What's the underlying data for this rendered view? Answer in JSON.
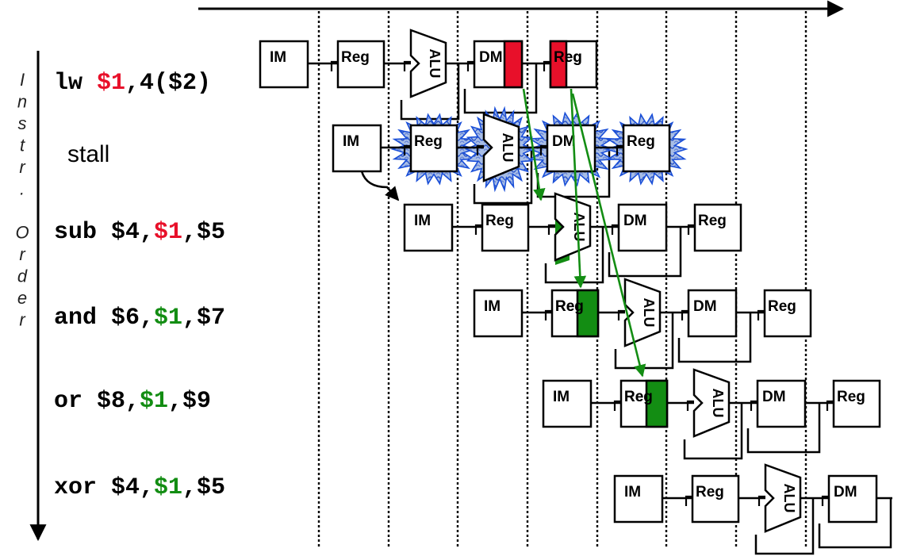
{
  "axis": {
    "vertical_label": [
      "I",
      "n",
      "s",
      "t",
      "r",
      ".",
      "",
      "O",
      "r",
      "d",
      "e",
      "r"
    ]
  },
  "stage_labels": {
    "im": "IM",
    "reg": "Reg",
    "alu": "ALU",
    "dm": "DM"
  },
  "colors": {
    "hazard": "#e8102a",
    "forward": "#138d13",
    "stall_fill": "#9bb5e2",
    "stall_edge": "#1a4fd8",
    "ink": "#000000"
  },
  "instructions": [
    {
      "name": "lw",
      "parts": [
        {
          "text": "lw  ",
          "color": "ink"
        },
        {
          "text": "$1",
          "color": "hazard"
        },
        {
          "text": ",4($2)",
          "color": "ink"
        }
      ]
    },
    {
      "name": "stall",
      "parts": [
        {
          "text": "stall",
          "color": "ink"
        }
      ]
    },
    {
      "name": "sub",
      "parts": [
        {
          "text": "sub $4,",
          "color": "ink"
        },
        {
          "text": "$1",
          "color": "hazard"
        },
        {
          "text": ",$5",
          "color": "ink"
        }
      ]
    },
    {
      "name": "and",
      "parts": [
        {
          "text": "and $6,",
          "color": "ink"
        },
        {
          "text": "$1",
          "color": "forward"
        },
        {
          "text": ",$7",
          "color": "ink"
        }
      ]
    },
    {
      "name": "or",
      "parts": [
        {
          "text": "or  $8,",
          "color": "ink"
        },
        {
          "text": "$1",
          "color": "forward"
        },
        {
          "text": ",$9",
          "color": "ink"
        }
      ]
    },
    {
      "name": "xor",
      "parts": [
        {
          "text": "xor $4,",
          "color": "ink"
        },
        {
          "text": "$1",
          "color": "forward"
        },
        {
          "text": ",$5",
          "color": "ink"
        }
      ]
    }
  ]
}
